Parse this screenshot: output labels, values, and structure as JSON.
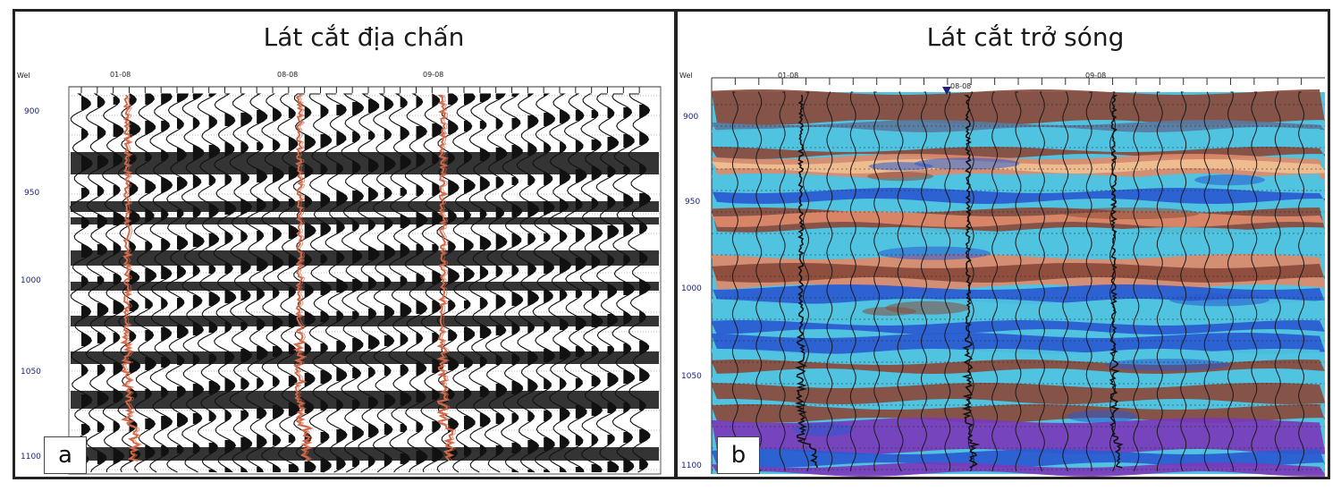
{
  "panels": [
    {
      "id": "a",
      "title": "Lát cắt địa chấn",
      "label": "a",
      "corner": "Wel",
      "wells": [
        "01-08",
        "08-08",
        "09-08"
      ],
      "depth_ticks": [
        "900",
        "950",
        "1000",
        "1050",
        "1100"
      ]
    },
    {
      "id": "b",
      "title": "Lát cắt trở sóng",
      "label": "b",
      "corner": "Wel",
      "wells": [
        "01-08",
        "08-08",
        "09-08"
      ],
      "depth_ticks": [
        "900",
        "950",
        "1000",
        "1050",
        "1100"
      ]
    }
  ],
  "colors": {
    "frame": "#222222",
    "well_log_a": "#d2694a",
    "well_log_b": "#111111",
    "cyan": "#4fc3e0",
    "brown": "#8a4a3a",
    "salmon": "#e08a6a",
    "tan": "#f0c090",
    "blue": "#2a5ad0",
    "purple": "#7a3ab8"
  }
}
